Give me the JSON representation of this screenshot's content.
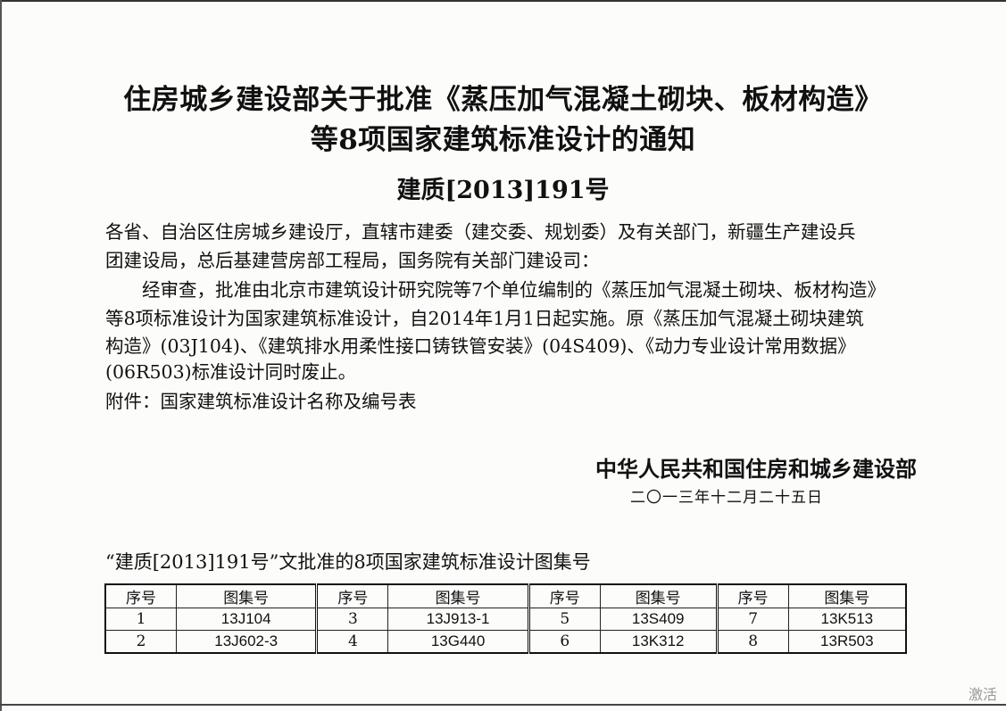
{
  "title_lines": [
    "住房城乡建设部关于批准《蒸压加气混凝土砌块、板材构造》",
    "等8项国家建筑标准设计的通知"
  ],
  "doc_number": "建质[2013]191号",
  "body_lines": [
    "各省、自治区住房城乡建设厅，直辖市建委（建交委、规划委）及有关部门，新疆生产建设兵",
    "团建设局，总后基建营房部工程局，国务院有关部门建设司：",
    "　　经审查，批准由北京市建筑设计研究院等7个单位编制的《蒸压加气混凝土砌块、板材构造》",
    "等8项标准设计为国家建筑标准设计，自2014年1月1日起实施。原《蒸压加气混凝土砌块建筑",
    "构造》(03J104)、《建筑排水用柔性接口铸铁管安装》(04S409)、《动力专业设计常用数据》",
    "(06R503)标准设计同时废止。",
    "附件：国家建筑标准设计名称及编号表"
  ],
  "signature": "中华人民共和国住房和城乡建设部",
  "date": "二〇一三年十二月二十五日",
  "table_caption": "“建质[2013]191号”文批准的8项国家建筑标准设计图集号",
  "table": {
    "header_seq": "序号",
    "header_code": "图集号",
    "rows": [
      [
        {
          "seq": "1",
          "code": "13J104"
        },
        {
          "seq": "3",
          "code": "13J913-1"
        },
        {
          "seq": "5",
          "code": "13S409"
        },
        {
          "seq": "7",
          "code": "13K513"
        }
      ],
      [
        {
          "seq": "2",
          "code": "13J602-3"
        },
        {
          "seq": "4",
          "code": "13G440"
        },
        {
          "seq": "6",
          "code": "13K312"
        },
        {
          "seq": "8",
          "code": "13R503"
        }
      ]
    ]
  },
  "watermark": "激活"
}
